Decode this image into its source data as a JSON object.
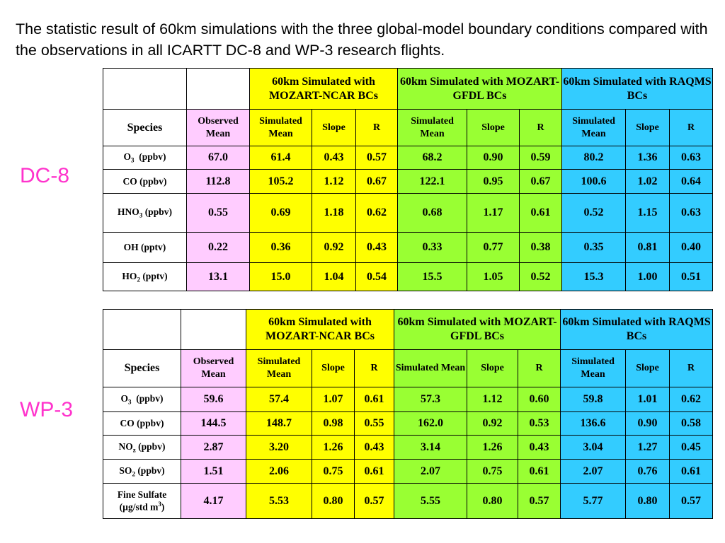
{
  "title": "The statistic result of 60km simulations with the three global-model boundary conditions compared with the observations in all ICARTT DC-8 and WP-3 research flights.",
  "colors": {
    "observed": "#ffccff",
    "ncar": "#ffff00",
    "gfdl": "#99ff33",
    "raqms": "#33ccff"
  },
  "groups": [
    "60km Simulated with MOZART-NCAR BCs",
    "60km Simulated with MOZART-GFDL BCs",
    "60km Simulated with RAQMS BCs"
  ],
  "sub": {
    "species": "Species",
    "observed": "Observed Mean",
    "simulated": "Simulated Mean",
    "slope": "Slope",
    "r": "R"
  },
  "dc8": {
    "label": "DC-8",
    "rows": [
      {
        "sp": "O",
        "sub": "3",
        "unit": "  (ppbv)",
        "v": [
          "67.0",
          "61.4",
          "0.43",
          "0.57",
          "68.2",
          "0.90",
          "0.59",
          "80.2",
          "1.36",
          "0.63"
        ]
      },
      {
        "sp": "CO (ppbv)",
        "v": [
          "112.8",
          "105.2",
          "1.12",
          "0.67",
          "122.1",
          "0.95",
          "0.67",
          "100.6",
          "1.02",
          "0.64"
        ]
      },
      {
        "sp": "HNO",
        "sub": "3",
        "unit": " (ppbv)",
        "v": [
          "0.55",
          "0.69",
          "1.18",
          "0.62",
          "0.68",
          "1.17",
          "0.61",
          "0.52",
          "1.15",
          "0.63"
        ]
      },
      {
        "sp": "OH (pptv)",
        "v": [
          "0.22",
          "0.36",
          "0.92",
          "0.43",
          "0.33",
          "0.77",
          "0.38",
          "0.35",
          "0.81",
          "0.40"
        ]
      },
      {
        "sp": "HO",
        "sub": "2",
        "unit": " (pptv)",
        "v": [
          "13.1",
          "15.0",
          "1.04",
          "0.54",
          "15.5",
          "1.05",
          "0.52",
          "15.3",
          "1.00",
          "0.51"
        ]
      }
    ]
  },
  "wp3": {
    "label": "WP-3",
    "rows": [
      {
        "sp": "O",
        "sub": "3",
        "unit": "  (ppbv)",
        "v": [
          "59.6",
          "57.4",
          "1.07",
          "0.61",
          "57.3",
          "1.12",
          "0.60",
          "59.8",
          "1.01",
          "0.62"
        ]
      },
      {
        "sp": "CO (ppbv)",
        "v": [
          "144.5",
          "148.7",
          "0.98",
          "0.55",
          "162.0",
          "0.92",
          "0.53",
          "136.6",
          "0.90",
          "0.58"
        ]
      },
      {
        "sp": "NO",
        "sub": "z",
        "unit": " (ppbv)",
        "v": [
          "2.87",
          "3.20",
          "1.26",
          "0.43",
          "3.14",
          "1.26",
          "0.43",
          "3.04",
          "1.27",
          "0.45"
        ]
      },
      {
        "sp": "SO",
        "sub": "2",
        "unit": " (ppbv)",
        "v": [
          "1.51",
          "2.06",
          "0.75",
          "0.61",
          "2.07",
          "0.75",
          "0.61",
          "2.07",
          "0.76",
          "0.61"
        ]
      },
      {
        "sp": "Fine Sulfate",
        "line2": "(µg/std m",
        "sup": "3",
        "close": ")",
        "v": [
          "4.17",
          "5.53",
          "0.80",
          "0.57",
          "5.55",
          "0.80",
          "0.57",
          "5.77",
          "0.80",
          "0.57"
        ]
      }
    ]
  }
}
